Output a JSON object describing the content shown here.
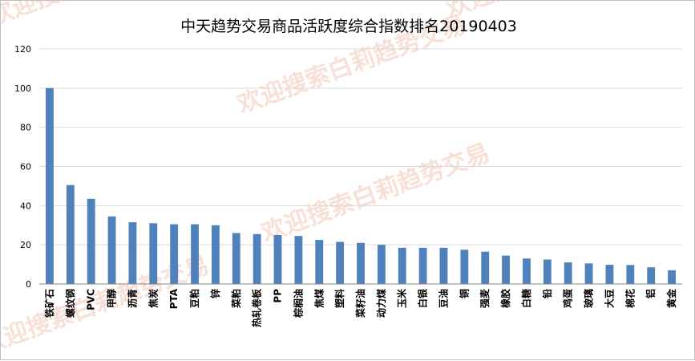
{
  "colors": {
    "bar": "#4f81bd",
    "grid": "#d9d9d9",
    "axis": "#868686",
    "watermark": "#f3c7b8"
  },
  "watermark_text": "欢迎搜索白莉趋势交易",
  "chart_data": {
    "type": "bar",
    "title": "中天趋势交易商品活跃度综合指数排名20190403",
    "xlabel": "",
    "ylabel": "",
    "ylim": [
      0,
      120
    ],
    "yticks": [
      0,
      20,
      40,
      60,
      80,
      100,
      120
    ],
    "grid": true,
    "legend": "none",
    "categories": [
      "铁矿石",
      "螺纹钢",
      "PVC",
      "甲醇",
      "沥青",
      "焦炭",
      "PTA",
      "豆粕",
      "锌",
      "菜粕",
      "热轧卷板",
      "PP",
      "棕榈油",
      "焦煤",
      "塑料",
      "菜籽油",
      "动力煤",
      "玉米",
      "白银",
      "豆油",
      "铜",
      "强麦",
      "橡胶",
      "白糖",
      "铅",
      "鸡蛋",
      "玻璃",
      "大豆",
      "棉花",
      "铝",
      "黄金"
    ],
    "values": [
      100,
      50.5,
      43.5,
      34.5,
      31.5,
      31,
      30.5,
      30.5,
      30,
      26,
      25.5,
      25,
      24.5,
      22.5,
      21.5,
      21,
      20,
      18.5,
      18.5,
      18.5,
      17.5,
      16.5,
      14.5,
      13,
      12.5,
      11,
      10.5,
      9.8,
      9.7,
      8.5,
      7
    ]
  }
}
